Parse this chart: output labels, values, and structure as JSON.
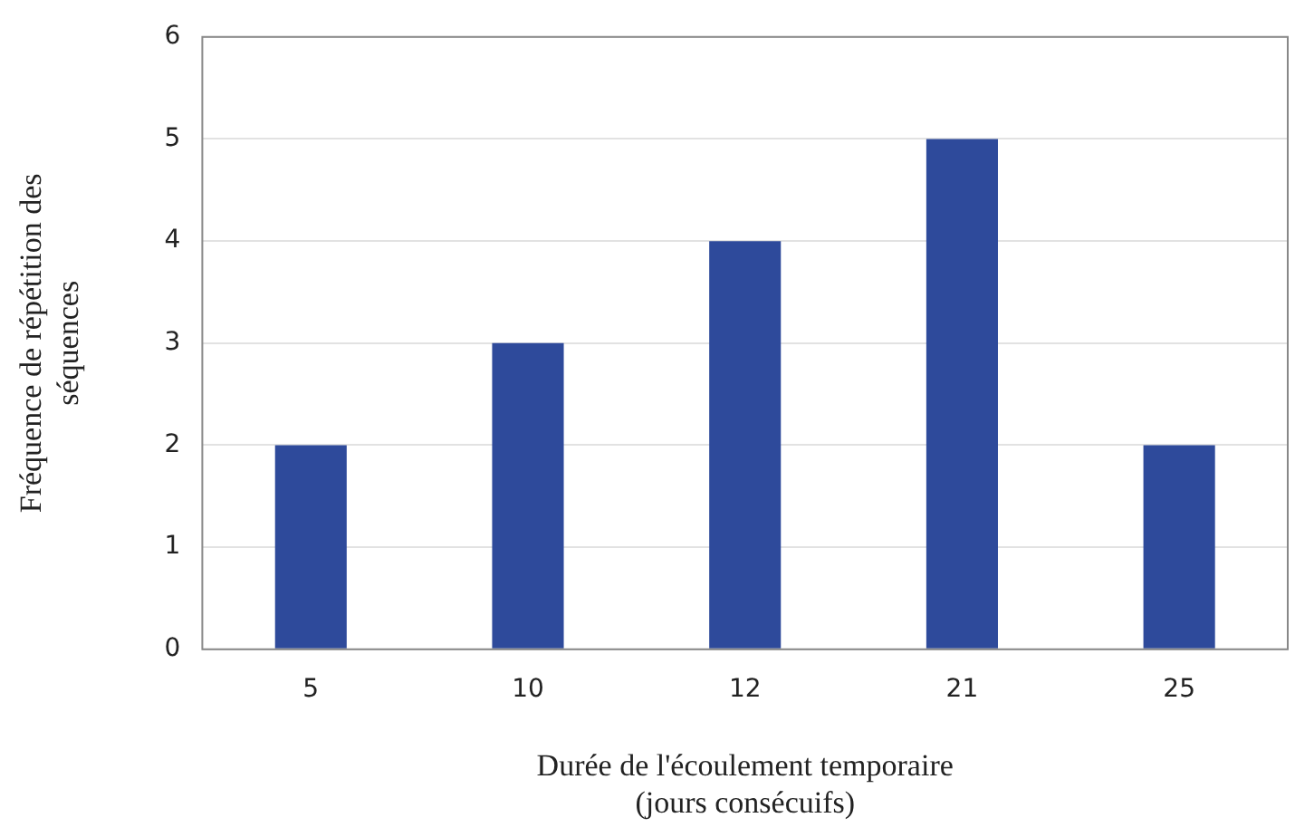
{
  "chart_data": {
    "type": "bar",
    "xlabel": "Durée de l'écoulement temporaire\n(jours consécuifs)",
    "ylabel": "Fréquence de répétition des\nséquences",
    "categories": [
      "5",
      "10",
      "12",
      "21",
      "25"
    ],
    "values": [
      2,
      3,
      4,
      5,
      2
    ],
    "color": "#2e4a9b",
    "ylim": [
      0,
      6
    ],
    "yticks": [
      0,
      1,
      2,
      3,
      4,
      5,
      6
    ],
    "grid": "y",
    "legend": false
  }
}
